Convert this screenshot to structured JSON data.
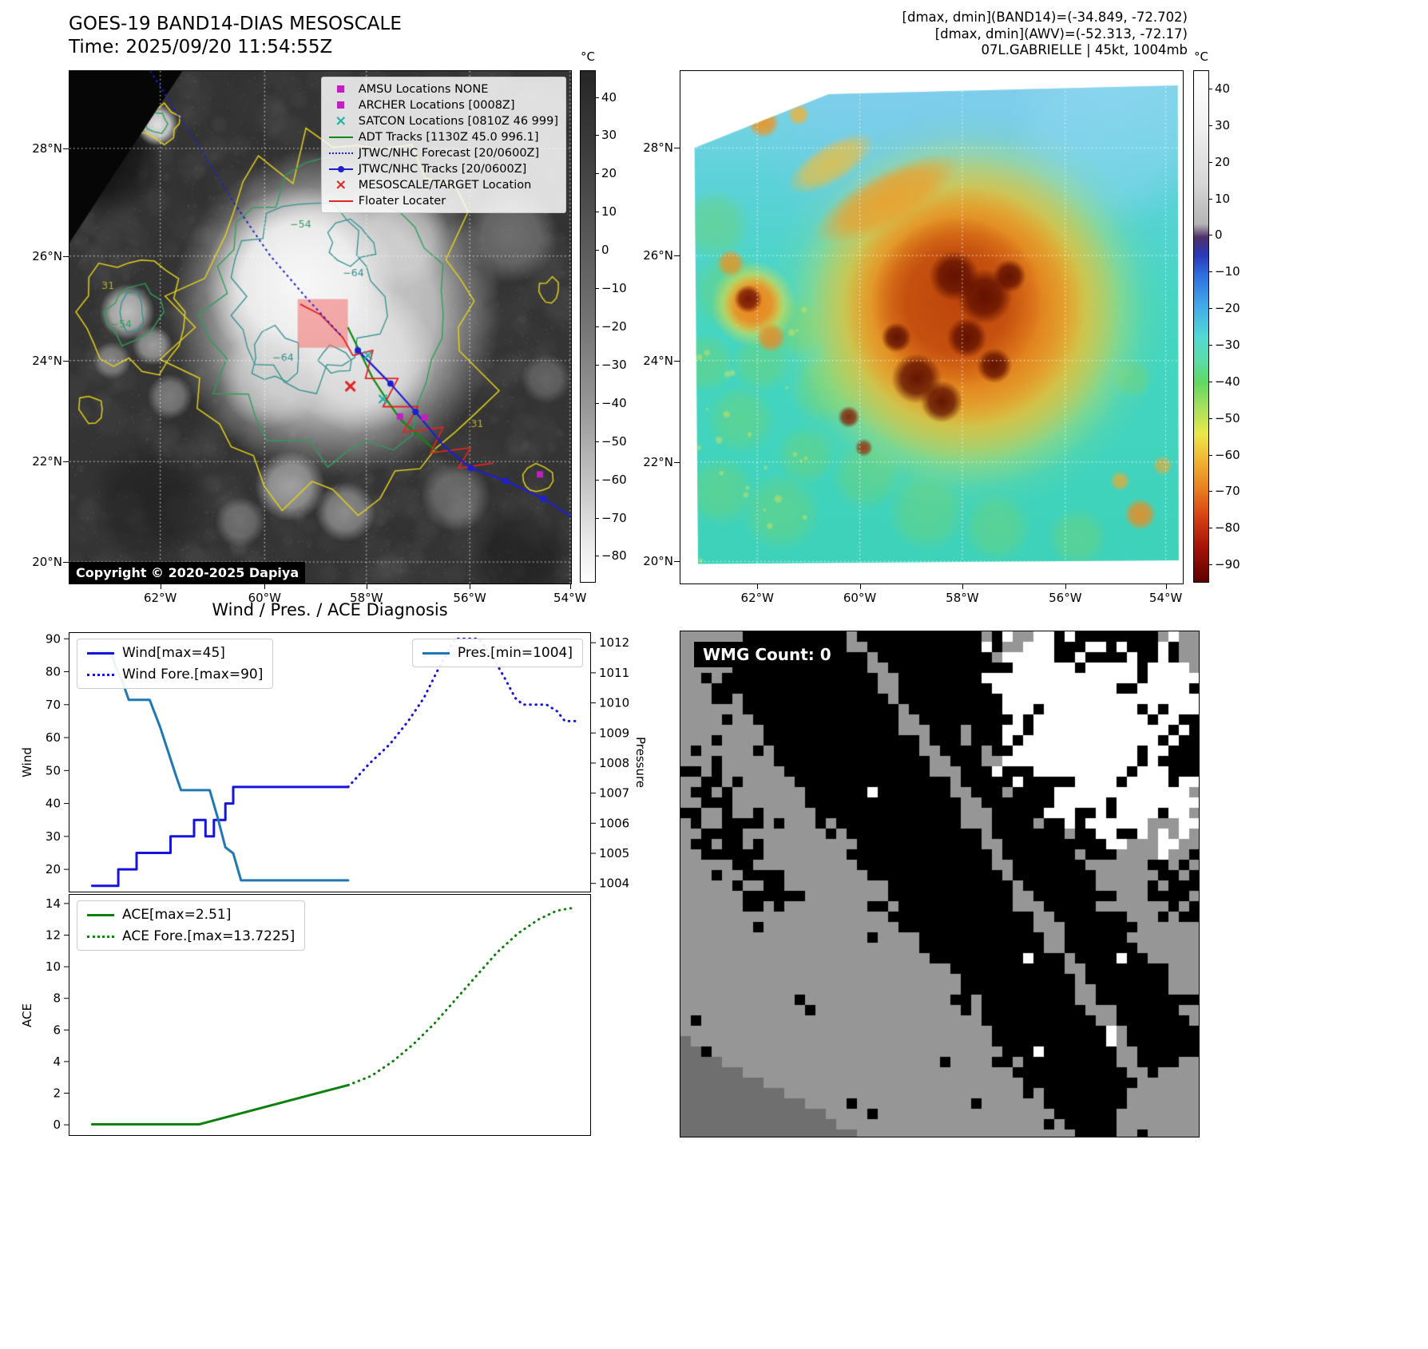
{
  "band14": {
    "title_line1": "GOES-19 BAND14-DIAS MESOSCALE",
    "title_line2": "Time: 2025/09/20 11:54:55Z",
    "copyright": "Copyright © 2020-2025 Dapiya",
    "legend": [
      {
        "label": "AMSU Locations NONE",
        "marker": "square",
        "color": "#c020c0"
      },
      {
        "label": "ARCHER Locations [0008Z]",
        "marker": "square",
        "color": "#c020c0"
      },
      {
        "label": "SATCON Locations [0810Z 46 999]",
        "marker": "x",
        "color": "#20b2aa"
      },
      {
        "label": "ADT Tracks [1130Z 45.0 996.1]",
        "marker": "line",
        "color": "#0e8a0e"
      },
      {
        "label": "JTWC/NHC Forecast [20/0600Z]",
        "marker": "dotted",
        "color": "#1f1fcf"
      },
      {
        "label": "JTWC/NHC Tracks [20/0600Z]",
        "marker": "line-dot",
        "color": "#1f1fcf"
      },
      {
        "label": "MESOSCALE/TARGET Location",
        "marker": "x",
        "color": "#e02525"
      },
      {
        "label": "Floater Locater",
        "marker": "line",
        "color": "#e02525"
      }
    ],
    "x_ticks": {
      "labels": [
        "62°W",
        "60°W",
        "58°W",
        "56°W",
        "54°W"
      ],
      "fracs": [
        0.181,
        0.389,
        0.592,
        0.798,
        0.998
      ]
    },
    "y_ticks": {
      "labels": [
        "28°N",
        "26°N",
        "24°N",
        "22°N",
        "20°N"
      ],
      "fracs": [
        0.151,
        0.361,
        0.565,
        0.762,
        0.958
      ]
    },
    "colorbar": {
      "unit": "°C",
      "vmax": 47,
      "vmin": -87,
      "ticks": [
        40,
        30,
        20,
        10,
        0,
        -10,
        -20,
        -30,
        -40,
        -50,
        -60,
        -70,
        -80
      ]
    },
    "contour_labels": [
      {
        "text": "-54",
        "fx": 0.44,
        "fy": 0.305,
        "color": "#2e9e5b"
      },
      {
        "text": "-64",
        "fx": 0.545,
        "fy": 0.4,
        "color": "#2f8f8f"
      },
      {
        "text": "-64",
        "fx": 0.405,
        "fy": 0.565,
        "color": "#2f8f8f"
      },
      {
        "text": "-54",
        "fx": 0.082,
        "fy": 0.5,
        "color": "#2e9e5b"
      },
      {
        "text": "31",
        "fx": 0.064,
        "fy": 0.425,
        "color": "#b8b020"
      },
      {
        "text": "31",
        "fx": 0.8,
        "fy": 0.695,
        "color": "#b8b020"
      }
    ]
  },
  "band14_overlays": {
    "forecast_track": [
      [
        0.155,
        -0.01
      ],
      [
        0.2,
        0.06
      ],
      [
        0.26,
        0.15
      ],
      [
        0.33,
        0.26
      ],
      [
        0.4,
        0.36
      ],
      [
        0.47,
        0.44
      ],
      [
        0.545,
        0.52
      ]
    ],
    "best_track": [
      [
        1.01,
        0.875
      ],
      [
        0.945,
        0.835
      ],
      [
        0.87,
        0.8
      ],
      [
        0.8,
        0.775
      ],
      [
        0.745,
        0.73
      ],
      [
        0.69,
        0.665
      ],
      [
        0.64,
        0.61
      ],
      [
        0.575,
        0.545
      ]
    ],
    "adt_track": [
      [
        0.555,
        0.5
      ],
      [
        0.585,
        0.56
      ],
      [
        0.605,
        0.6
      ],
      [
        0.635,
        0.645
      ],
      [
        0.66,
        0.68
      ],
      [
        0.7,
        0.715
      ],
      [
        0.735,
        0.745
      ]
    ],
    "floater_track": [
      [
        0.46,
        0.455
      ],
      [
        0.5,
        0.475
      ],
      [
        0.545,
        0.52
      ],
      [
        0.565,
        0.555
      ],
      [
        0.605,
        0.545
      ],
      [
        0.59,
        0.6
      ],
      [
        0.655,
        0.6
      ],
      [
        0.625,
        0.655
      ],
      [
        0.695,
        0.655
      ],
      [
        0.665,
        0.705
      ],
      [
        0.745,
        0.695
      ],
      [
        0.72,
        0.745
      ],
      [
        0.8,
        0.735
      ],
      [
        0.775,
        0.775
      ],
      [
        0.845,
        0.765
      ]
    ],
    "target_box": [
      0.455,
      0.445,
      0.1,
      0.095
    ],
    "target_x": [
      [
        0.56,
        0.615
      ]
    ],
    "satcon_x": [
      [
        0.595,
        0.555
      ],
      [
        0.625,
        0.64
      ]
    ],
    "archer_squares": [
      [
        0.659,
        0.674
      ],
      [
        0.708,
        0.676
      ],
      [
        0.938,
        0.787
      ]
    ],
    "track_dots": [
      [
        0.945,
        0.835
      ],
      [
        0.87,
        0.8
      ],
      [
        0.8,
        0.775
      ],
      [
        0.69,
        0.665
      ],
      [
        0.64,
        0.61
      ],
      [
        0.575,
        0.545
      ]
    ]
  },
  "awv": {
    "title_line1": "[dmax, dmin](BAND14)=(-34.849, -72.702)",
    "title_line2": "[dmax, dmin](AWV)=(-52.313, -72.17)",
    "title_line3": "07L.GABRIELLE | 45kt, 1004mb",
    "x_ticks": {
      "labels": [
        "62°W",
        "60°W",
        "58°W",
        "56°W",
        "54°W"
      ],
      "fracs": [
        0.153,
        0.357,
        0.561,
        0.766,
        0.966
      ]
    },
    "y_ticks": {
      "labels": [
        "28°N",
        "26°N",
        "24°N",
        "22°N",
        "20°N"
      ],
      "fracs": [
        0.15,
        0.36,
        0.565,
        0.763,
        0.957
      ]
    },
    "colorbar": {
      "unit": "°C",
      "vmax": 45,
      "vmin": -95,
      "ticks": [
        40,
        30,
        20,
        10,
        0,
        -10,
        -20,
        -30,
        -40,
        -50,
        -60,
        -70,
        -80,
        -90
      ]
    }
  },
  "wmg": {
    "label": "WMG Count: 0"
  },
  "chart_data": [
    {
      "type": "line",
      "title": "Wind / Pres. / ACE Diagnosis",
      "ylabel_left": "Wind",
      "ylabel_right": "Pressure",
      "ylim_left": [
        13,
        92
      ],
      "yticks_left": [
        20,
        30,
        40,
        50,
        60,
        70,
        80,
        90
      ],
      "ylim_right": [
        1003.7,
        1012.35
      ],
      "yticks_right": [
        1004,
        1005,
        1006,
        1007,
        1008,
        1009,
        1010,
        1011,
        1012
      ],
      "series": [
        {
          "name": "Wind[max=45]",
          "axis": "left",
          "style": "solid",
          "color": "#1414dc",
          "points": [
            [
              0.045,
              15
            ],
            [
              0.095,
              15
            ],
            [
              0.095,
              20
            ],
            [
              0.13,
              20
            ],
            [
              0.13,
              25
            ],
            [
              0.195,
              25
            ],
            [
              0.195,
              30
            ],
            [
              0.24,
              30
            ],
            [
              0.24,
              35
            ],
            [
              0.262,
              35
            ],
            [
              0.262,
              30
            ],
            [
              0.278,
              30
            ],
            [
              0.278,
              35
            ],
            [
              0.3,
              35
            ],
            [
              0.3,
              40
            ],
            [
              0.315,
              40
            ],
            [
              0.315,
              45
            ],
            [
              0.535,
              45
            ]
          ]
        },
        {
          "name": "Wind Fore.[max=90]",
          "axis": "left",
          "style": "dotted",
          "color": "#1414dc",
          "points": [
            [
              0.535,
              45
            ],
            [
              0.575,
              52
            ],
            [
              0.615,
              58
            ],
            [
              0.65,
              65
            ],
            [
              0.68,
              72
            ],
            [
              0.705,
              80
            ],
            [
              0.725,
              86
            ],
            [
              0.74,
              90
            ],
            [
              0.785,
              90
            ],
            [
              0.81,
              85
            ],
            [
              0.835,
              78
            ],
            [
              0.855,
              72
            ],
            [
              0.87,
              70
            ],
            [
              0.915,
              70
            ],
            [
              0.935,
              68
            ],
            [
              0.95,
              65
            ],
            [
              0.97,
              65
            ]
          ]
        },
        {
          "name": "Pres.[min=1004]",
          "axis": "right",
          "style": "solid",
          "color": "#1f77b4",
          "points": [
            [
              0.045,
              1011.7
            ],
            [
              0.08,
              1011.7
            ],
            [
              0.09,
              1011.2
            ],
            [
              0.105,
              1010.6
            ],
            [
              0.115,
              1010.1
            ],
            [
              0.155,
              1010.1
            ],
            [
              0.175,
              1009.2
            ],
            [
              0.19,
              1008.4
            ],
            [
              0.205,
              1007.6
            ],
            [
              0.215,
              1007.1
            ],
            [
              0.27,
              1007.1
            ],
            [
              0.285,
              1006.2
            ],
            [
              0.3,
              1005.2
            ],
            [
              0.315,
              1005.0
            ],
            [
              0.33,
              1004.1
            ],
            [
              0.535,
              1004.1
            ]
          ]
        }
      ],
      "legends": [
        {
          "pos": "top-left",
          "entries": [
            0,
            1
          ]
        },
        {
          "pos": "top-right",
          "entries": [
            2
          ]
        }
      ]
    },
    {
      "type": "line",
      "ylabel_left": "ACE",
      "ylim_left": [
        -0.7,
        14.6
      ],
      "yticks_left": [
        0,
        2,
        4,
        6,
        8,
        10,
        12,
        14
      ],
      "series": [
        {
          "name": "ACE[max=2.51]",
          "axis": "left",
          "style": "solid",
          "color": "#0e800e",
          "points": [
            [
              0.045,
              0.03
            ],
            [
              0.25,
              0.03
            ],
            [
              0.535,
              2.51
            ]
          ]
        },
        {
          "name": "ACE Fore.[max=13.7225]",
          "axis": "left",
          "style": "dotted",
          "color": "#0e800e",
          "points": [
            [
              0.535,
              2.51
            ],
            [
              0.58,
              3.1
            ],
            [
              0.62,
              4.0
            ],
            [
              0.66,
              5.1
            ],
            [
              0.7,
              6.4
            ],
            [
              0.74,
              7.9
            ],
            [
              0.78,
              9.4
            ],
            [
              0.82,
              10.9
            ],
            [
              0.86,
              12.1
            ],
            [
              0.9,
              13.0
            ],
            [
              0.935,
              13.55
            ],
            [
              0.965,
              13.72
            ]
          ]
        }
      ],
      "legends": [
        {
          "pos": "top-left",
          "entries": [
            0,
            1
          ]
        }
      ]
    }
  ]
}
